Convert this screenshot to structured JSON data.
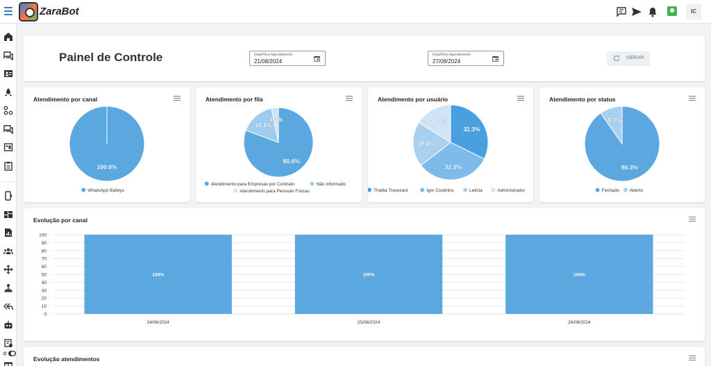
{
  "app": {
    "brand": "ZaraBot"
  },
  "topbar": {
    "icons": [
      "chat-icon",
      "send-icon",
      "bell-icon",
      "whatsapp-status-icon"
    ],
    "avatar_initials": "IC"
  },
  "sidebar": {
    "icons": [
      "home-icon",
      "chat-icon",
      "contacts-icon",
      "rocket-icon",
      "flow-icon",
      "chat-queue-icon",
      "kanban-icon",
      "clipboard-icon",
      "phone-icon",
      "dashboard-icon",
      "report-icon",
      "team-icon",
      "network-icon",
      "integration-icon",
      "reply-all-icon",
      "bot-icon",
      "campaign-icon",
      "gift-icon"
    ]
  },
  "panel": {
    "title": "Painel de Controle",
    "date_label": "Data/Hora Agendamento",
    "date_start": "21/08/2024",
    "date_end": "27/08/2024",
    "generate_label": "GERAR"
  },
  "pies": [
    {
      "title": "Atendimento por canal",
      "slices": [
        {
          "label": "WhatsApp Baileys",
          "value": 100.0,
          "display": "100.0%",
          "color": "#5ba8e0"
        }
      ]
    },
    {
      "title": "Atendimento por fila",
      "slices": [
        {
          "label": "Atendimento para Empresas por Contrato",
          "value": 80.6,
          "display": "80.6%",
          "color": "#5ba8e0"
        },
        {
          "label": "Não informado",
          "value": 16.1,
          "display": "16.1%",
          "color": "#9fcbee"
        },
        {
          "label": "Atendimento para Pessoas Físicas",
          "value": 3.2,
          "display": "3.2%",
          "color": "#cde4f6"
        }
      ]
    },
    {
      "title": "Atendimento por usuário",
      "slices": [
        {
          "label": "Thalita Travezani",
          "value": 32.3,
          "display": "32.3%",
          "color": "#4a9fe0"
        },
        {
          "label": "Igor Coutinho",
          "value": 32.3,
          "display": "32.3%",
          "color": "#7fbbea"
        },
        {
          "label": "Leticia",
          "value": 19.4,
          "display": "19.4%",
          "color": "#a9d0f0"
        },
        {
          "label": "Administrador",
          "value": 16.1,
          "display": "16.1%",
          "color": "#cfe4f6"
        }
      ]
    },
    {
      "title": "Atendimento por status",
      "slices": [
        {
          "label": "Fechado",
          "value": 90.3,
          "display": "90.3%",
          "color": "#5ba8e0"
        },
        {
          "label": "Aberto",
          "value": 9.7,
          "display": "9.7%",
          "color": "#a9d0f0"
        }
      ]
    }
  ],
  "evolution": {
    "title": "Evolução por canal"
  },
  "evolution2": {
    "title": "Evolução atendimentos"
  },
  "chart_data": {
    "type": "bar",
    "title": "Evolução por canal",
    "categories": [
      "24/08/2024",
      "25/08/2024",
      "26/08/2024"
    ],
    "values": [
      100,
      100,
      100
    ],
    "value_labels": [
      "100%",
      "100%",
      "100%"
    ],
    "yticks": [
      0,
      10,
      20,
      30,
      40,
      50,
      60,
      70,
      80,
      90,
      100
    ],
    "ylim": [
      0,
      100
    ],
    "grid": true,
    "color": "#5ba8e0"
  }
}
